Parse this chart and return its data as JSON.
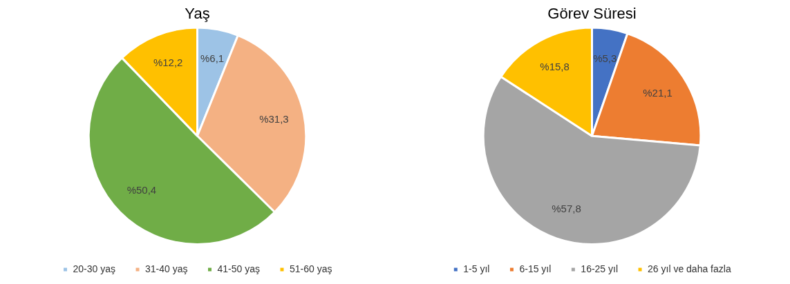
{
  "chart_data": [
    {
      "type": "pie",
      "title": "Yaş",
      "categories": [
        "20-30 yaş",
        "31-40 yaş",
        "41-50 yaş",
        "51-60 yaş"
      ],
      "values": [
        6.1,
        31.3,
        50.4,
        12.2
      ],
      "colors": [
        "#9dc3e6",
        "#f4b183",
        "#70ad47",
        "#ffc000"
      ],
      "value_labels": [
        "%6,1",
        "%31,3",
        "%50,4",
        "%12,2"
      ],
      "legend": "bottom"
    },
    {
      "type": "pie",
      "title": "Görev Süresi",
      "categories": [
        "1-5 yıl",
        "6-15 yıl",
        "16-25 yıl",
        "26 yıl ve daha fazla"
      ],
      "values": [
        5.3,
        21.1,
        57.8,
        15.8
      ],
      "colors": [
        "#4472c4",
        "#ed7d31",
        "#a5a5a5",
        "#ffc000"
      ],
      "value_labels": [
        "%5,3",
        "%21,1",
        "%57,8",
        "%15,8"
      ],
      "legend": "bottom"
    }
  ]
}
